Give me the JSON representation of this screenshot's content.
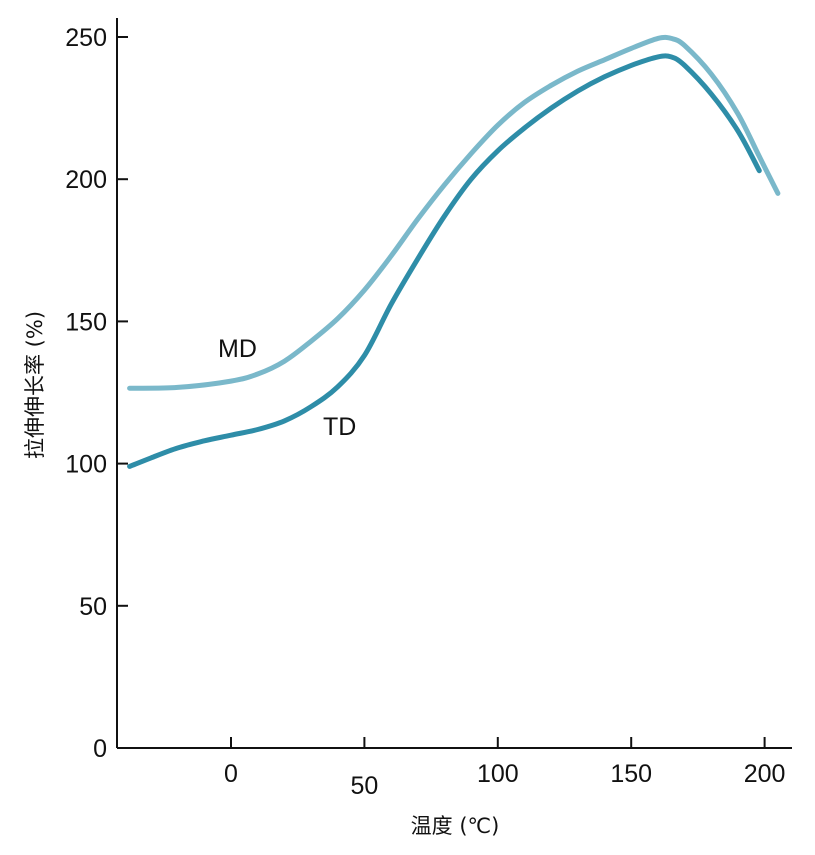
{
  "chart_data": {
    "type": "line",
    "title": "",
    "xlabel": "温度 (℃)",
    "ylabel": "拉伸伸长率 (%)",
    "xlim": [
      -38,
      210
    ],
    "ylim": [
      0,
      258
    ],
    "xticks": [
      0,
      50,
      100,
      150,
      200
    ],
    "yticks": [
      0,
      50,
      100,
      150,
      200,
      250
    ],
    "grid": false,
    "series": [
      {
        "name": "MD",
        "color": "#7ab8ca",
        "points": [
          [
            -38,
            126.5
          ],
          [
            -20,
            126.8
          ],
          [
            0,
            129
          ],
          [
            10,
            131.5
          ],
          [
            20,
            136
          ],
          [
            30,
            143
          ],
          [
            40,
            151
          ],
          [
            50,
            161
          ],
          [
            60,
            173
          ],
          [
            70,
            186
          ],
          [
            80,
            198
          ],
          [
            90,
            209
          ],
          [
            100,
            219
          ],
          [
            110,
            227
          ],
          [
            120,
            233
          ],
          [
            130,
            238
          ],
          [
            140,
            242
          ],
          [
            150,
            246
          ],
          [
            160,
            249.5
          ],
          [
            165,
            249.5
          ],
          [
            170,
            247
          ],
          [
            180,
            237
          ],
          [
            190,
            223
          ],
          [
            198,
            208
          ],
          [
            205,
            195
          ]
        ]
      },
      {
        "name": "TD",
        "color": "#2e8da8",
        "points": [
          [
            -38,
            99
          ],
          [
            -30,
            102
          ],
          [
            -20,
            105.5
          ],
          [
            -10,
            108
          ],
          [
            0,
            110
          ],
          [
            10,
            112
          ],
          [
            20,
            115
          ],
          [
            30,
            120
          ],
          [
            40,
            127
          ],
          [
            50,
            138
          ],
          [
            60,
            156
          ],
          [
            70,
            172
          ],
          [
            80,
            187
          ],
          [
            90,
            200
          ],
          [
            100,
            210
          ],
          [
            110,
            218
          ],
          [
            120,
            225
          ],
          [
            130,
            231
          ],
          [
            140,
            236
          ],
          [
            150,
            240
          ],
          [
            160,
            243
          ],
          [
            165,
            243
          ],
          [
            170,
            240
          ],
          [
            180,
            230
          ],
          [
            190,
            217
          ],
          [
            198,
            203
          ]
        ]
      }
    ]
  }
}
